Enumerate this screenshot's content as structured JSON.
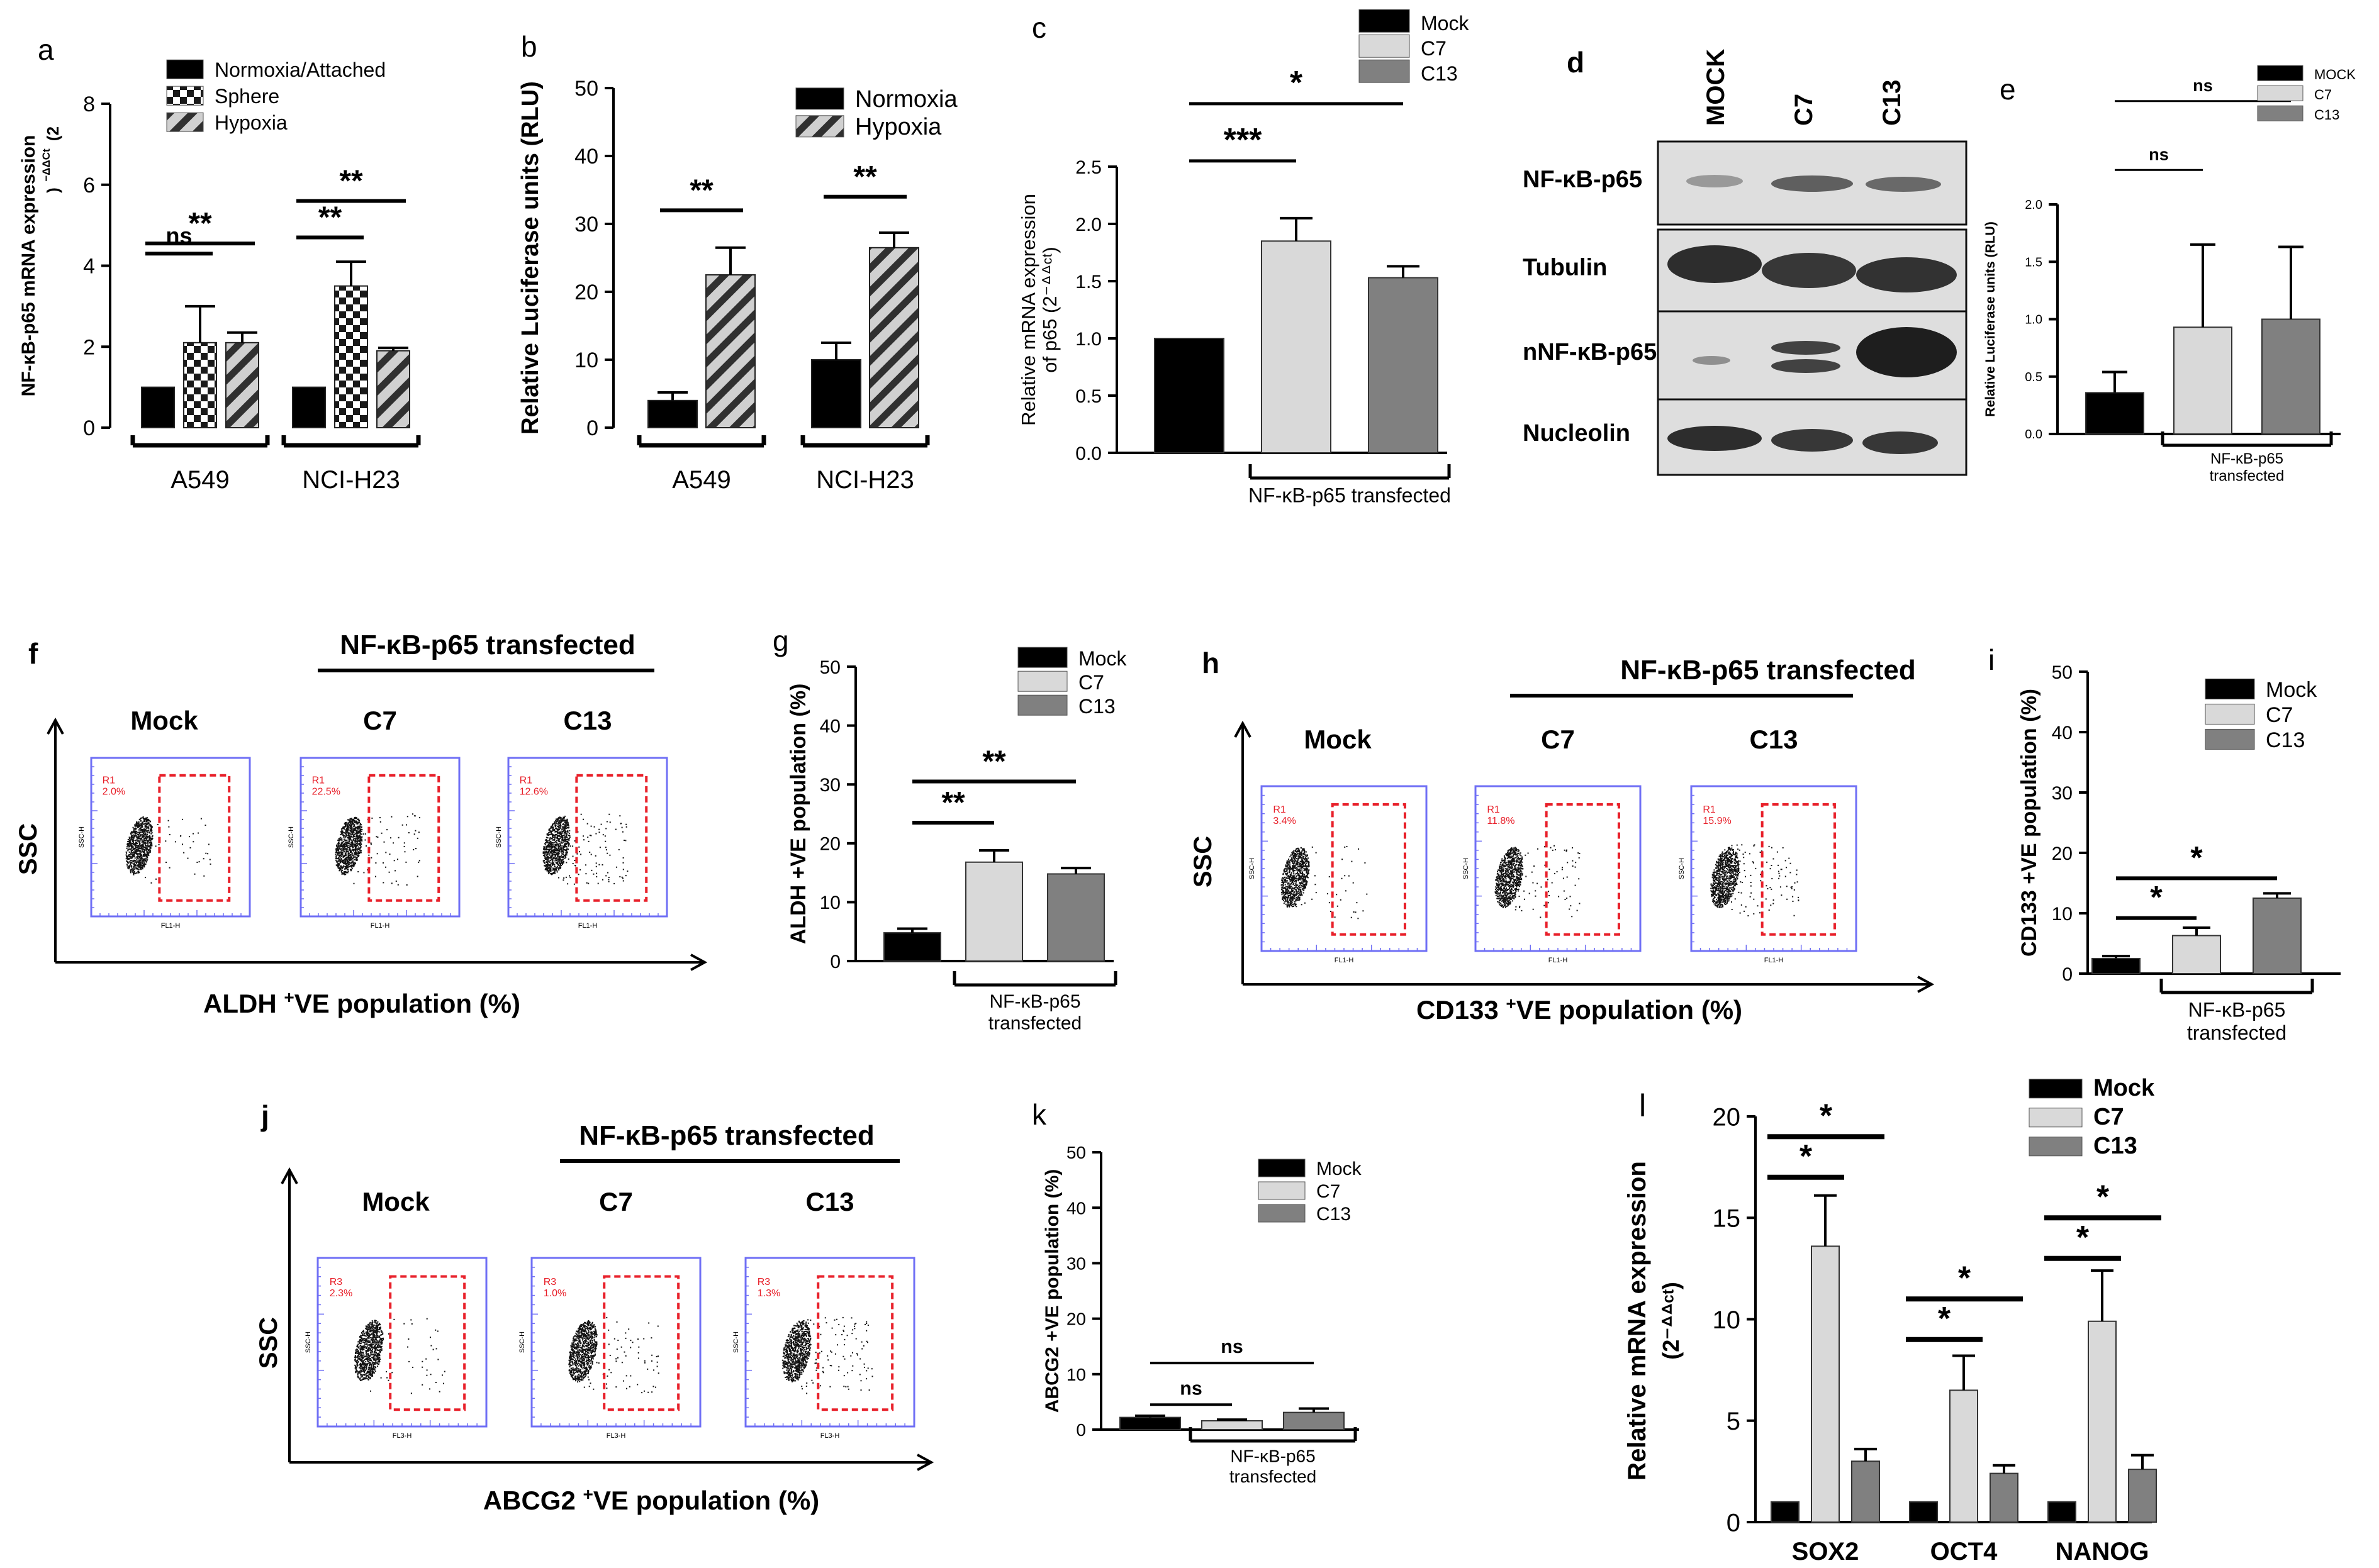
{
  "colors": {
    "mock": "#000000",
    "c7": "#d9d9d9",
    "c13": "#808080",
    "gate": "#e8202a",
    "plot_border": "#6f6ff5",
    "dots": "#111111"
  },
  "chart_data": [
    {
      "panel": "a",
      "type": "bar",
      "ylabel": "NF-κB-p65 mRNA expression (2^−ΔΔCt)",
      "ylim": [
        0,
        8
      ],
      "yticks": [
        "0",
        "2",
        "4",
        "6",
        "8"
      ],
      "groups": [
        "A549",
        "NCI-H23"
      ],
      "series": [
        {
          "name": "Normoxia/Attached",
          "values": [
            1.0,
            1.0
          ],
          "errors": [
            0,
            0
          ],
          "pattern": "solid"
        },
        {
          "name": "Sphere",
          "values": [
            2.1,
            3.5
          ],
          "errors": [
            0.9,
            0.6
          ],
          "pattern": "check"
        },
        {
          "name": "Hypoxia",
          "values": [
            2.1,
            1.9
          ],
          "errors": [
            0.25,
            0.07
          ],
          "pattern": "hatch"
        }
      ],
      "annotations": [
        {
          "text": "ns",
          "group": 0,
          "from": 0,
          "to": 1,
          "y": 4.3
        },
        {
          "text": "**",
          "group": 0,
          "from": 0,
          "to": 2,
          "y": 4.55
        },
        {
          "text": "**",
          "group": 1,
          "from": 0,
          "to": 1,
          "y": 4.7
        },
        {
          "text": "**",
          "group": 1,
          "from": 0,
          "to": 2,
          "y": 5.6
        }
      ]
    },
    {
      "panel": "b",
      "type": "bar",
      "ylabel": "Relative Luciferase units (RLU)",
      "ylim": [
        0,
        50
      ],
      "yticks": [
        "0",
        "10",
        "20",
        "30",
        "40",
        "50"
      ],
      "groups": [
        "A549",
        "NCI-H23"
      ],
      "series": [
        {
          "name": "Normoxia",
          "values": [
            4,
            10
          ],
          "errors": [
            1.2,
            2.5
          ],
          "pattern": "solid"
        },
        {
          "name": "Hypoxia",
          "values": [
            22.5,
            26.5
          ],
          "errors": [
            4,
            2.2
          ],
          "pattern": "hatch"
        }
      ],
      "annotations": [
        {
          "text": "**",
          "group": 0,
          "from": 0,
          "to": 1,
          "y": 32
        },
        {
          "text": "**",
          "group": 1,
          "from": 0,
          "to": 1,
          "y": 34
        }
      ]
    },
    {
      "panel": "c",
      "type": "bar",
      "ylabel": "Relative mRNA expression of p65 (2^−ΔΔCt)",
      "ylim": [
        0,
        2.5
      ],
      "yticks": [
        "0.0",
        "0.5",
        "1.0",
        "1.5",
        "2.0",
        "2.5"
      ],
      "categories": [
        "Mock",
        "C7",
        "C13"
      ],
      "values": [
        1.0,
        1.85,
        1.53
      ],
      "errors": [
        0,
        0.2,
        0.1
      ],
      "group_label": "NF-κB-p65 transfected",
      "annotations": [
        {
          "text": "***",
          "from": 0,
          "to": 1,
          "y": 2.55
        },
        {
          "text": "*",
          "from": 0,
          "to": 2,
          "y": 3.05
        }
      ]
    },
    {
      "panel": "e",
      "type": "bar",
      "ylabel": "Relative Luciferase units (RLU)",
      "ylim": [
        0,
        2.0
      ],
      "yticks": [
        "0.0",
        "0.5",
        "1.0",
        "1.5",
        "2.0"
      ],
      "categories": [
        "MOCK",
        "C7",
        "C13"
      ],
      "values": [
        0.36,
        0.93,
        1.0
      ],
      "errors": [
        0.18,
        0.72,
        0.63
      ],
      "group_label": "NF-κB-p65 transfected",
      "annotations": [
        {
          "text": "ns",
          "from": 0,
          "to": 1,
          "y": 2.3
        },
        {
          "text": "ns",
          "from": 0,
          "to": 2,
          "y": 2.9
        }
      ]
    },
    {
      "panel": "g",
      "type": "bar",
      "ylabel": "ALDH +VE population (%)",
      "ylim": [
        0,
        50
      ],
      "yticks": [
        "0",
        "10",
        "20",
        "30",
        "40",
        "50"
      ],
      "categories": [
        "Mock",
        "C7",
        "C13"
      ],
      "values": [
        4.8,
        16.8,
        14.8
      ],
      "errors": [
        0.7,
        2.0,
        1.0
      ],
      "group_label": "NF-κB-p65 transfected",
      "annotations": [
        {
          "text": "**",
          "from": 0,
          "to": 1,
          "y": 23.5
        },
        {
          "text": "**",
          "from": 0,
          "to": 2,
          "y": 30.5
        }
      ]
    },
    {
      "panel": "i",
      "type": "bar",
      "ylabel": "CD133 +VE population (%)",
      "ylim": [
        0,
        50
      ],
      "yticks": [
        "0",
        "10",
        "20",
        "30",
        "40",
        "50"
      ],
      "categories": [
        "Mock",
        "C7",
        "C13"
      ],
      "values": [
        2.5,
        6.3,
        12.5
      ],
      "errors": [
        0.4,
        1.3,
        0.8
      ],
      "group_label": "NF-κB-p65 transfected",
      "annotations": [
        {
          "text": "*",
          "from": 0,
          "to": 1,
          "y": 9.2
        },
        {
          "text": "*",
          "from": 0,
          "to": 2,
          "y": 15.8
        }
      ]
    },
    {
      "panel": "k",
      "type": "bar",
      "ylabel": "ABCG2 +VE population (%)",
      "ylim": [
        0,
        50
      ],
      "yticks": [
        "0",
        "10",
        "20",
        "30",
        "40",
        "50"
      ],
      "categories": [
        "Mock",
        "C7",
        "C13"
      ],
      "values": [
        2.2,
        1.6,
        3.1
      ],
      "errors": [
        0.3,
        0.2,
        0.7
      ],
      "group_label": "NF-κB-p65 transfected",
      "annotations": [
        {
          "text": "ns",
          "from": 0,
          "to": 1,
          "y": 4.5
        },
        {
          "text": "ns",
          "from": 0,
          "to": 2,
          "y": 12.0
        }
      ]
    },
    {
      "panel": "l",
      "type": "bar",
      "ylabel": "Relative mRNA expression (2^−ΔΔCt)",
      "ylim": [
        0,
        20
      ],
      "yticks": [
        "0",
        "5",
        "10",
        "15",
        "20"
      ],
      "groups": [
        "SOX2",
        "OCT4",
        "NANOG"
      ],
      "series": [
        {
          "name": "Mock",
          "values": [
            1.0,
            1.0,
            1.0
          ],
          "errors": [
            0,
            0,
            0
          ]
        },
        {
          "name": "C7",
          "values": [
            13.6,
            6.5,
            9.9
          ],
          "errors": [
            2.5,
            1.7,
            2.5
          ]
        },
        {
          "name": "C13",
          "values": [
            3.0,
            2.4,
            2.6
          ],
          "errors": [
            0.6,
            0.4,
            0.7
          ]
        }
      ],
      "annotations": [
        {
          "text": "*",
          "group": 0,
          "from": 0,
          "to": 1,
          "y": 17.0
        },
        {
          "text": "*",
          "group": 0,
          "from": 0,
          "to": 2,
          "y": 19.0
        },
        {
          "text": "*",
          "group": 1,
          "from": 0,
          "to": 1,
          "y": 9.0
        },
        {
          "text": "*",
          "group": 1,
          "from": 0,
          "to": 2,
          "y": 11.0
        },
        {
          "text": "*",
          "group": 2,
          "from": 0,
          "to": 1,
          "y": 13.0
        },
        {
          "text": "*",
          "group": 2,
          "from": 0,
          "to": 2,
          "y": 15.0
        }
      ]
    }
  ],
  "panels": {
    "a": {
      "letter": "a",
      "legend": [
        "Normoxia/Attached",
        "Sphere",
        "Hypoxia"
      ]
    },
    "b": {
      "letter": "b",
      "legend": [
        "Normoxia",
        "Hypoxia"
      ]
    },
    "c": {
      "letter": "c",
      "legend": [
        "Mock",
        "C7",
        "C13"
      ]
    },
    "d": {
      "letter": "d",
      "lanes": [
        "MOCK",
        "C7",
        "C13"
      ],
      "blots": [
        "NF-κB-p65",
        "Tubulin",
        "nNF-κB-p65",
        "Nucleolin"
      ]
    },
    "e": {
      "letter": "e",
      "legend": [
        "MOCK",
        "C7",
        "C13"
      ]
    },
    "f": {
      "letter": "f",
      "header": "NF-κB-p65 transfected",
      "samples": [
        "Mock",
        "C7",
        "C13"
      ],
      "yaxis": "SSC",
      "xaxis_main": "ALDH",
      "xaxis_sup": "+",
      "xaxis_rest": "VE population (%)",
      "plot_ylabel": "SSC-H",
      "plot_xlabel": "FL1-H",
      "gate_name": "R1",
      "gate_values": [
        "2.0%",
        "22.5%",
        "12.6%"
      ]
    },
    "g": {
      "letter": "g",
      "legend": [
        "Mock",
        "C7",
        "C13"
      ]
    },
    "h": {
      "letter": "h",
      "header": "NF-κB-p65 transfected",
      "samples": [
        "Mock",
        "C7",
        "C13"
      ],
      "yaxis": "SSC",
      "xaxis_main": "CD133",
      "xaxis_sup": "+",
      "xaxis_rest": "VE population (%)",
      "plot_ylabel": "SSC-H",
      "plot_xlabel": "FL1-H",
      "gate_name": "R1",
      "gate_values": [
        "3.4%",
        "11.8%",
        "15.9%"
      ]
    },
    "i": {
      "letter": "i",
      "legend": [
        "Mock",
        "C7",
        "C13"
      ]
    },
    "j": {
      "letter": "j",
      "header": "NF-κB-p65 transfected",
      "samples": [
        "Mock",
        "C7",
        "C13"
      ],
      "yaxis": "SSC",
      "xaxis_main": "ABCG2",
      "xaxis_sup": "+",
      "xaxis_rest": "VE population (%)",
      "plot_ylabel": "SSC-H",
      "plot_xlabel": "FL3-H",
      "gate_name": "R3",
      "gate_values": [
        "2.3%",
        "1.0%",
        "1.3%"
      ]
    },
    "k": {
      "letter": "k",
      "legend": [
        "Mock",
        "C7",
        "C13"
      ]
    },
    "l": {
      "letter": "l",
      "legend": [
        "Mock",
        "C7",
        "C13"
      ]
    }
  }
}
